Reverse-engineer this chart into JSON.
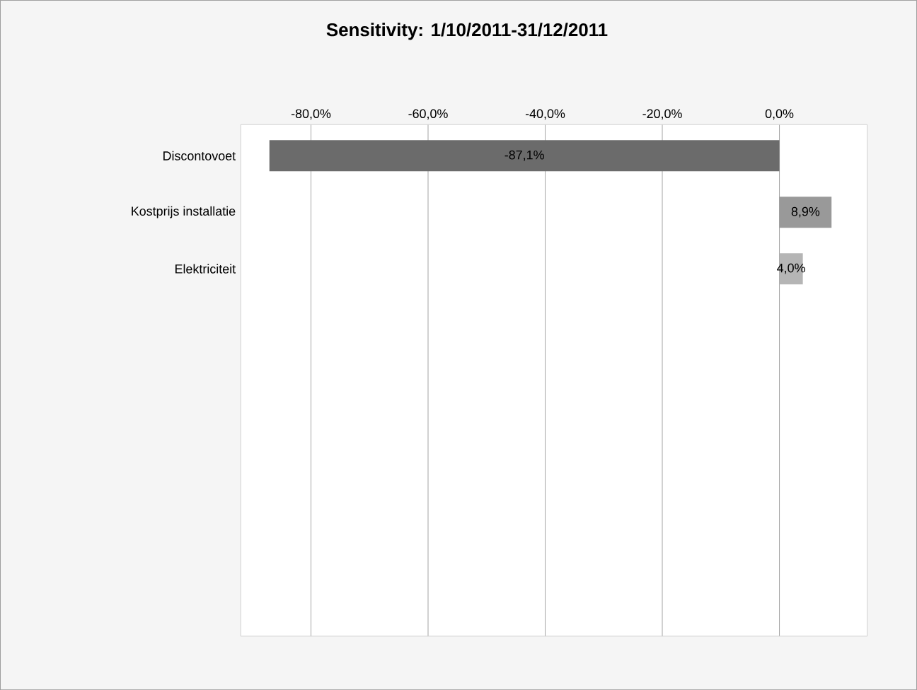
{
  "chart_data": {
    "type": "bar",
    "orientation": "horizontal",
    "title": "Sensitivity: 1/10/2011-31/12/2011",
    "categories": [
      "Discontovoet",
      "Kostprijs installatie",
      "Elektriciteit"
    ],
    "values": [
      -87.1,
      8.9,
      4.0
    ],
    "colors": [
      "#6b6b6b",
      "#999999",
      "#b5b5b5"
    ],
    "value_labels": [
      "-87,1%",
      "8,9%",
      "4,0%"
    ],
    "xlim": [
      -92,
      15
    ],
    "xticks": [
      {
        "value": -80,
        "label": "-80,0%"
      },
      {
        "value": -60,
        "label": "-60,0%"
      },
      {
        "value": -40,
        "label": "-40,0%"
      },
      {
        "value": -20,
        "label": "-20,0%"
      },
      {
        "value": 0,
        "label": "0,0%"
      }
    ],
    "grid": "x"
  }
}
